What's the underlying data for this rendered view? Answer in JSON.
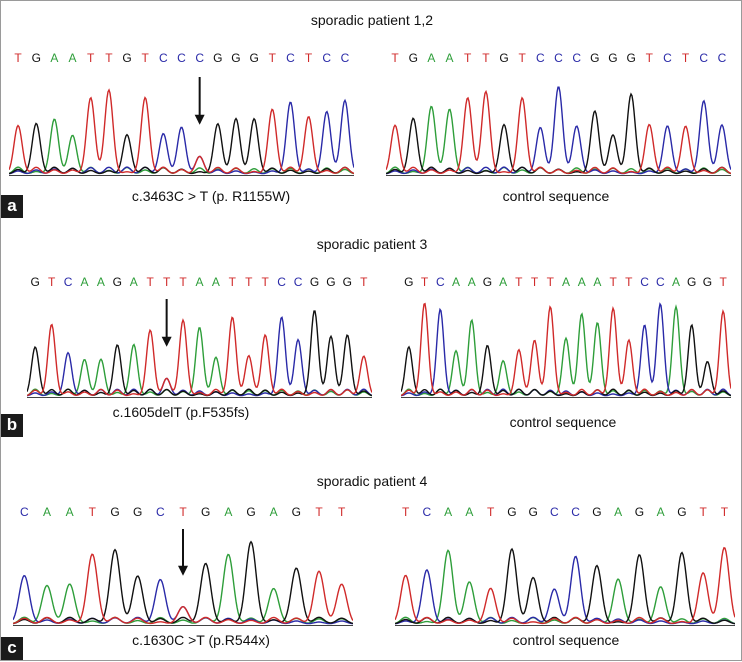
{
  "colors": {
    "A": "#2e9e3a",
    "C": "#2a2aa8",
    "G": "#111111",
    "T": "#d02a2a",
    "arrow": "#111111"
  },
  "panels": [
    {
      "id": "a",
      "title": "sporadic patient 1,2",
      "label": "a",
      "left": {
        "sequence": "TGAATTGTCCCGGGTCTCC",
        "caption": "c.3463C > T (p. R1155W)",
        "mutation_index": 10
      },
      "right": {
        "sequence": "TGAATTGTCCCGGGTCTCC",
        "caption": "control sequence"
      }
    },
    {
      "id": "b",
      "title": "sporadic patient 3",
      "label": "b",
      "left": {
        "sequence": "GTCAAGATTTAATTTCCGGGT",
        "caption": "c.1605delT (p.F535fs)",
        "mutation_index": 8
      },
      "right": {
        "sequence": "GTCAAGATTTAAATTCCAGGT",
        "caption": "control sequence"
      }
    },
    {
      "id": "c",
      "title": "sporadic patient 4",
      "label": "c",
      "left": {
        "sequence": "CAATGGCTGAGAGTT",
        "caption": "c.1630C >T (p.R544x)",
        "mutation_index": 7
      },
      "right": {
        "sequence": "TCAATGGCCGAGAGTT",
        "caption": "control sequence"
      }
    }
  ]
}
